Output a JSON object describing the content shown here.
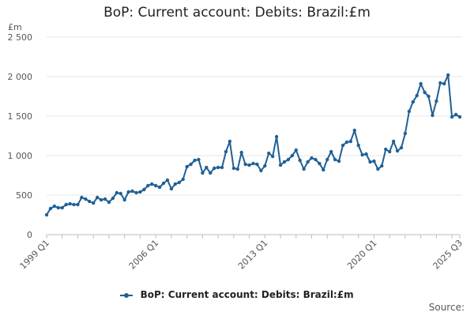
{
  "page": {
    "title": "BoP: Current account: Debits: Brazil:£m",
    "legend_label": "BoP: Current account: Debits: Brazil:£m",
    "source_label": "Source:"
  },
  "chart_data": {
    "type": "line",
    "title": "BoP: Current account: Debits: Brazil:£m",
    "unit": "£m",
    "ylim": [
      0,
      2500
    ],
    "yticks": [
      0,
      500,
      1000,
      1500,
      2000,
      2500
    ],
    "ytick_labels": [
      "0",
      "500",
      "1 000",
      "1 500",
      "2 000",
      "2 500"
    ],
    "xtick_labels": [
      "1999 Q1",
      "2006 Q1",
      "2013 Q1",
      "2020 Q1",
      "2025 Q3"
    ],
    "grid": true,
    "legend_position": "bottom",
    "colors": {
      "series": "#206095",
      "grid": "#e6e6e6",
      "axis": "#bebebe"
    },
    "series": [
      {
        "name": "BoP: Current account: Debits: Brazil:£m",
        "x": [
          "1999 Q1",
          "1999 Q2",
          "1999 Q3",
          "1999 Q4",
          "2000 Q1",
          "2000 Q2",
          "2000 Q3",
          "2000 Q4",
          "2001 Q1",
          "2001 Q2",
          "2001 Q3",
          "2001 Q4",
          "2002 Q1",
          "2002 Q2",
          "2002 Q3",
          "2002 Q4",
          "2003 Q1",
          "2003 Q2",
          "2003 Q3",
          "2003 Q4",
          "2004 Q1",
          "2004 Q2",
          "2004 Q3",
          "2004 Q4",
          "2005 Q1",
          "2005 Q2",
          "2005 Q3",
          "2005 Q4",
          "2006 Q1",
          "2006 Q2",
          "2006 Q3",
          "2006 Q4",
          "2007 Q1",
          "2007 Q2",
          "2007 Q3",
          "2007 Q4",
          "2008 Q1",
          "2008 Q2",
          "2008 Q3",
          "2008 Q4",
          "2009 Q1",
          "2009 Q2",
          "2009 Q3",
          "2009 Q4",
          "2010 Q1",
          "2010 Q2",
          "2010 Q3",
          "2010 Q4",
          "2011 Q1",
          "2011 Q2",
          "2011 Q3",
          "2011 Q4",
          "2012 Q1",
          "2012 Q2",
          "2012 Q3",
          "2012 Q4",
          "2013 Q1",
          "2013 Q2",
          "2013 Q3",
          "2013 Q4",
          "2014 Q1",
          "2014 Q2",
          "2014 Q3",
          "2014 Q4",
          "2015 Q1",
          "2015 Q2",
          "2015 Q3",
          "2015 Q4",
          "2016 Q1",
          "2016 Q2",
          "2016 Q3",
          "2016 Q4",
          "2017 Q1",
          "2017 Q2",
          "2017 Q3",
          "2017 Q4",
          "2018 Q1",
          "2018 Q2",
          "2018 Q3",
          "2018 Q4",
          "2019 Q1",
          "2019 Q2",
          "2019 Q3",
          "2019 Q4",
          "2020 Q1",
          "2020 Q2",
          "2020 Q3",
          "2020 Q4",
          "2021 Q1",
          "2021 Q2",
          "2021 Q3",
          "2021 Q4",
          "2022 Q1",
          "2022 Q2",
          "2022 Q3",
          "2022 Q4",
          "2023 Q1",
          "2023 Q2",
          "2023 Q3",
          "2023 Q4",
          "2024 Q1",
          "2024 Q2",
          "2024 Q3",
          "2024 Q4",
          "2025 Q1",
          "2025 Q2",
          "2025 Q3"
        ],
        "values": [
          250,
          330,
          360,
          340,
          340,
          380,
          390,
          380,
          380,
          470,
          450,
          420,
          400,
          470,
          440,
          450,
          410,
          460,
          530,
          520,
          440,
          540,
          550,
          530,
          540,
          570,
          620,
          640,
          620,
          600,
          650,
          690,
          580,
          640,
          660,
          700,
          860,
          890,
          940,
          950,
          780,
          850,
          780,
          840,
          850,
          850,
          1050,
          1180,
          840,
          830,
          1040,
          890,
          880,
          900,
          890,
          810,
          870,
          1030,
          990,
          1240,
          880,
          920,
          950,
          1000,
          1070,
          940,
          830,
          920,
          970,
          950,
          900,
          820,
          950,
          1050,
          950,
          930,
          1130,
          1170,
          1180,
          1320,
          1130,
          1010,
          1020,
          920,
          930,
          830,
          870,
          1080,
          1050,
          1180,
          1060,
          1100,
          1280,
          1560,
          1680,
          1760,
          1910,
          1800,
          1750,
          1510,
          1690,
          1920,
          1910,
          2020,
          1490,
          1520,
          1490
        ]
      }
    ]
  }
}
